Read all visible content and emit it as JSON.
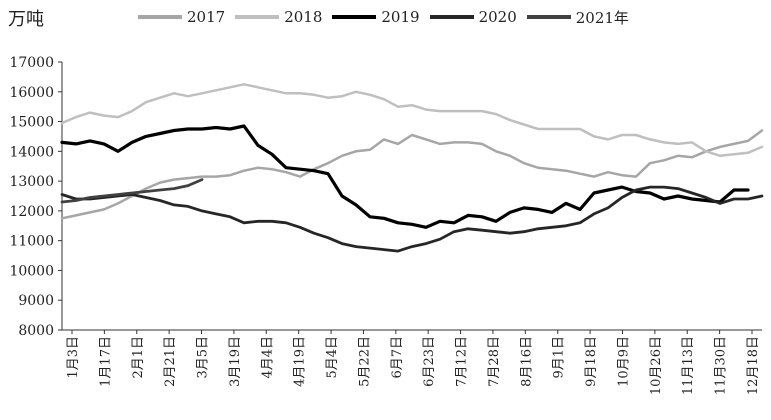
{
  "chart_data": {
    "type": "line",
    "title": "",
    "ylabel": "万吨",
    "xlabel": "",
    "ylim": [
      8000,
      17000
    ],
    "yticks": [
      8000,
      9000,
      10000,
      11000,
      12000,
      13000,
      14000,
      15000,
      16000,
      17000
    ],
    "x_ticks": [
      "1月3日",
      "1月17日",
      "2月1日",
      "2月21日",
      "3月5日",
      "3月19日",
      "4月4日",
      "4月19日",
      "5月4日",
      "5月22日",
      "6月7日",
      "6月23日",
      "7月12日",
      "7月28日",
      "8月16日",
      "9月1日",
      "9月18日",
      "10月9日",
      "10月26日",
      "11月13日",
      "11月30日",
      "12月18日"
    ],
    "grid": false,
    "legend_position": "top",
    "series": [
      {
        "name": "2017",
        "color": "#a6a6a6",
        "values": [
          11750,
          11850,
          11950,
          12050,
          12250,
          12500,
          12750,
          12950,
          13050,
          13100,
          13150,
          13150,
          13200,
          13350,
          13450,
          13400,
          13300,
          13150,
          13400,
          13600,
          13850,
          14000,
          14050,
          14400,
          14250,
          14550,
          14400,
          14250,
          14300,
          14300,
          14250,
          14000,
          13850,
          13600,
          13450,
          13400,
          13350,
          13250,
          13150,
          13300,
          13200,
          13150,
          13600,
          13700,
          13850,
          13800,
          14000,
          14150,
          14250,
          14350,
          14700
        ]
      },
      {
        "name": "2018",
        "color": "#bfbfbf",
        "values": [
          14950,
          15150,
          15300,
          15200,
          15150,
          15350,
          15650,
          15800,
          15950,
          15850,
          15950,
          16050,
          16150,
          16250,
          16150,
          16050,
          15950,
          15950,
          15900,
          15800,
          15850,
          16000,
          15900,
          15750,
          15500,
          15550,
          15400,
          15350,
          15350,
          15350,
          15350,
          15250,
          15050,
          14900,
          14750,
          14750,
          14750,
          14750,
          14500,
          14400,
          14550,
          14550,
          14400,
          14300,
          14250,
          14300,
          14000,
          13850,
          13900,
          13950,
          14150
        ]
      },
      {
        "name": "2019",
        "color": "#000000",
        "values": [
          14300,
          14250,
          14350,
          14250,
          14000,
          14300,
          14500,
          14600,
          14700,
          14750,
          14750,
          14800,
          14750,
          14850,
          14200,
          13900,
          13450,
          13400,
          13350,
          13250,
          12500,
          12200,
          11800,
          11750,
          11600,
          11550,
          11450,
          11650,
          11600,
          11850,
          11800,
          11650,
          11950,
          12100,
          12050,
          11950,
          12250,
          12050,
          12600,
          12700,
          12800,
          12650,
          12600,
          12400,
          12500,
          12400,
          12350,
          12300,
          12700,
          12700,
          null
        ]
      },
      {
        "name": "2020",
        "color": "#262626",
        "values": [
          12550,
          12400,
          12400,
          12450,
          12500,
          12550,
          12450,
          12350,
          12200,
          12150,
          12000,
          11900,
          11800,
          11600,
          11650,
          11650,
          11600,
          11450,
          11250,
          11100,
          10900,
          10800,
          10750,
          10700,
          10650,
          10800,
          10900,
          11050,
          11300,
          11400,
          11350,
          11300,
          11250,
          11300,
          11400,
          11450,
          11500,
          11600,
          11900,
          12100,
          12450,
          12700,
          12800,
          12800,
          12750,
          12600,
          12450,
          12250,
          12400,
          12400,
          12500
        ]
      },
      {
        "name": "2021年",
        "color": "#404040",
        "values": [
          12300,
          12350,
          12450,
          12500,
          12550,
          12600,
          12650,
          12700,
          12750,
          12850,
          13050,
          null,
          null,
          null,
          null,
          null,
          null,
          null,
          null,
          null,
          null,
          null,
          null,
          null,
          null,
          null,
          null,
          null,
          null,
          null,
          null,
          null,
          null,
          null,
          null,
          null,
          null,
          null,
          null,
          null,
          null,
          null,
          null,
          null,
          null,
          null,
          null,
          null,
          null,
          null,
          null
        ]
      }
    ]
  }
}
